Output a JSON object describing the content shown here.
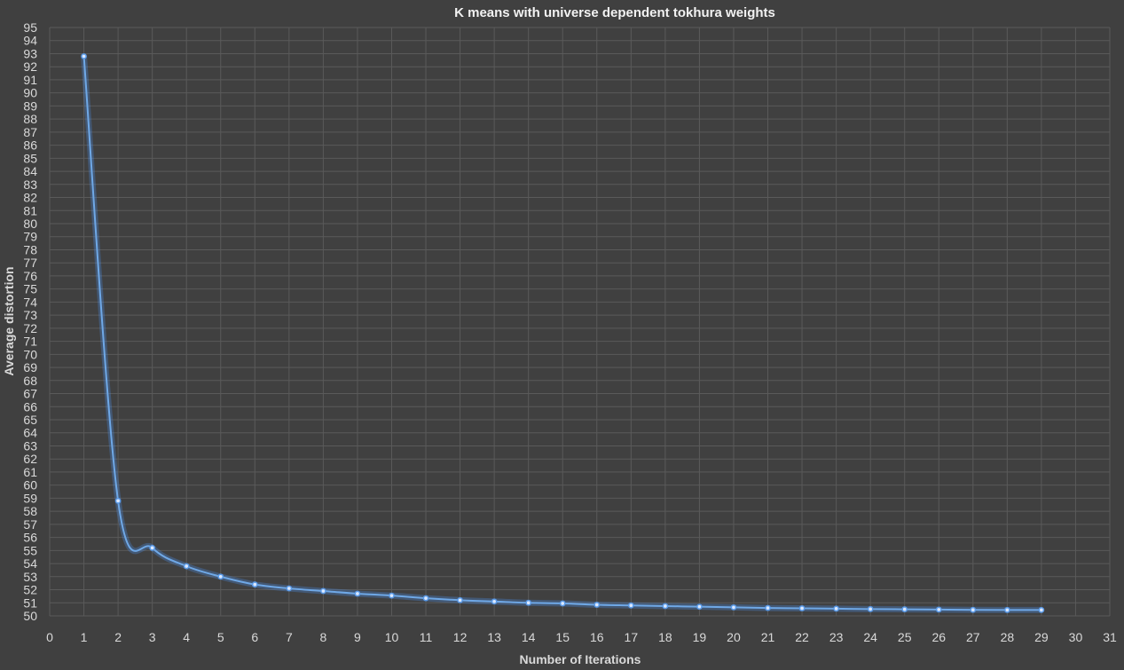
{
  "chart_data": {
    "type": "line",
    "title": "K means with universe dependent tokhura weights",
    "xlabel": "Number of Iterations",
    "ylabel": "Average distortion",
    "xlim": [
      0,
      31
    ],
    "ylim": [
      50,
      95
    ],
    "x_ticks": [
      0,
      1,
      2,
      3,
      4,
      5,
      6,
      7,
      8,
      9,
      10,
      11,
      12,
      13,
      14,
      15,
      16,
      17,
      18,
      19,
      20,
      21,
      22,
      23,
      24,
      25,
      26,
      27,
      28,
      29,
      30,
      31
    ],
    "y_ticks": [
      50,
      51,
      52,
      53,
      54,
      55,
      56,
      57,
      58,
      59,
      60,
      61,
      62,
      63,
      64,
      65,
      66,
      67,
      68,
      69,
      70,
      71,
      72,
      73,
      74,
      75,
      76,
      77,
      78,
      79,
      80,
      81,
      82,
      83,
      84,
      85,
      86,
      87,
      88,
      89,
      90,
      91,
      92,
      93,
      94,
      95
    ],
    "grid": true,
    "smooth": true,
    "series": [
      {
        "color": "#5b9be8",
        "x": [
          1,
          2,
          3,
          4,
          5,
          6,
          7,
          8,
          9,
          10,
          11,
          12,
          13,
          14,
          15,
          16,
          17,
          18,
          19,
          20,
          21,
          22,
          23,
          24,
          25,
          26,
          27,
          28,
          29
        ],
        "y": [
          92.8,
          58.8,
          55.2,
          53.8,
          53.0,
          52.4,
          52.1,
          51.9,
          51.7,
          51.55,
          51.35,
          51.2,
          51.1,
          51.0,
          50.95,
          50.85,
          50.8,
          50.75,
          50.7,
          50.65,
          50.6,
          50.58,
          50.55,
          50.52,
          50.5,
          50.48,
          50.46,
          50.45,
          50.45
        ]
      }
    ]
  }
}
